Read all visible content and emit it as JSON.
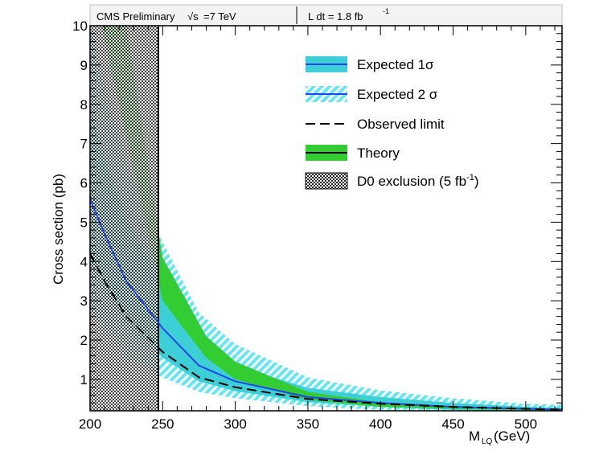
{
  "header": {
    "experiment": "CMS Preliminary",
    "sqrt_s": "=7 TeV",
    "lumi_prefix": "L dt = 1.8 fb",
    "lumi_exp": "-1"
  },
  "chart_data": {
    "type": "line",
    "xlabel_main": "M",
    "xlabel_sub": "LQ",
    "xlabel_unit": " (GeV)",
    "ylabel": "Cross section (pb)",
    "xlim": [
      200,
      525
    ],
    "ylim": [
      0.2,
      10
    ],
    "log_y": false,
    "x_ticks": [
      200,
      250,
      300,
      350,
      400,
      450,
      500
    ],
    "y_ticks": [
      1,
      2,
      3,
      4,
      5,
      6,
      7,
      8,
      9,
      10
    ],
    "legend_position": "top-right",
    "legend": [
      {
        "key": "exp1",
        "label": "Expected 1σ"
      },
      {
        "key": "exp2",
        "label": "Expected 2 σ"
      },
      {
        "key": "obs",
        "label": "Observed limit"
      },
      {
        "key": "theory",
        "label": "Theory"
      },
      {
        "key": "d0",
        "label": "D0 exclusion (5 fb",
        "label_sup": "-1",
        "label_end": ")"
      }
    ],
    "colors": {
      "exp1_band": "#3ccfd6",
      "exp2_band": "#66e6f2",
      "expected_line": "#2244ee",
      "theory_band": "#33cc33",
      "observed_line": "#000000"
    },
    "series": [
      {
        "key": "expected_median",
        "x": [
          200,
          210,
          225,
          250,
          275,
          300,
          350,
          400,
          450,
          500,
          525
        ],
        "y": [
          5.6,
          4.7,
          3.5,
          2.3,
          1.35,
          0.95,
          0.55,
          0.4,
          0.3,
          0.25,
          0.23
        ]
      },
      {
        "key": "expected_1sigma",
        "x": [
          200,
          210,
          225,
          250,
          275,
          300,
          350,
          400,
          450,
          500,
          525
        ],
        "y_low": [
          4.0,
          3.3,
          2.4,
          1.55,
          0.95,
          0.7,
          0.42,
          0.3,
          0.22,
          0.2,
          0.2
        ],
        "y_high": [
          8.0,
          6.6,
          5.1,
          3.4,
          1.95,
          1.35,
          0.78,
          0.55,
          0.4,
          0.3,
          0.28
        ]
      },
      {
        "key": "expected_2sigma",
        "x": [
          200,
          210,
          225,
          250,
          275,
          300,
          350,
          400,
          450,
          500,
          525
        ],
        "y_low": [
          2.8,
          2.3,
          1.6,
          1.05,
          0.68,
          0.52,
          0.32,
          0.22,
          0.2,
          0.2,
          0.2
        ],
        "y_high": [
          10.0,
          8.5,
          6.5,
          4.5,
          2.7,
          1.9,
          1.05,
          0.72,
          0.52,
          0.38,
          0.35
        ]
      },
      {
        "key": "observed",
        "x": [
          200,
          210,
          225,
          250,
          275,
          300,
          350,
          400,
          450,
          500,
          525
        ],
        "y": [
          4.2,
          3.5,
          2.6,
          1.7,
          1.05,
          0.8,
          0.5,
          0.38,
          0.3,
          0.25,
          0.23
        ]
      },
      {
        "key": "theory",
        "x": [
          208,
          225,
          250,
          280,
          300,
          350,
          400,
          450,
          500,
          525
        ],
        "y_low": [
          10.0,
          7.2,
          3.0,
          1.55,
          1.0,
          0.48,
          0.3,
          0.25,
          0.22,
          0.2
        ],
        "y_high": [
          10.0,
          10.0,
          4.1,
          2.1,
          1.45,
          0.68,
          0.42,
          0.32,
          0.27,
          0.24
        ],
        "left_edge_x_low": 208,
        "left_edge_x_high": 221
      }
    ],
    "d0_exclusion_x": [
      200,
      247
    ]
  }
}
